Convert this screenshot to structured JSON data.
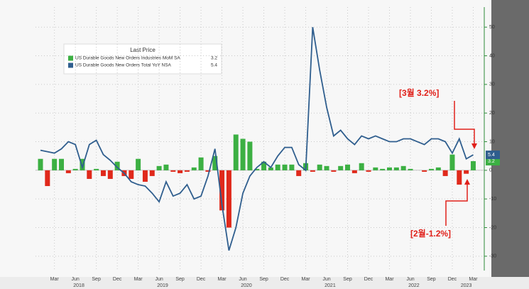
{
  "chart_data": {
    "type": "bar-line",
    "categories": [
      null,
      null,
      "Mar",
      null,
      null,
      "Jun",
      null,
      null,
      "Sep",
      null,
      null,
      "Dec",
      null,
      null,
      "Mar",
      null,
      null,
      "Jun",
      null,
      null,
      "Sep",
      null,
      null,
      "Dec",
      null,
      null,
      "Mar",
      null,
      null,
      "Jun",
      null,
      null,
      "Sep",
      null,
      null,
      "Dec",
      null,
      null,
      "Mar",
      null,
      null,
      "Jun",
      null,
      null,
      "Sep",
      null,
      null,
      "Dec",
      null,
      null,
      "Mar",
      null,
      null,
      "Jun",
      null,
      null,
      "Sep",
      null,
      null,
      "Dec",
      null,
      null,
      "Mar"
    ],
    "x_groups": [
      "2018",
      "2019",
      "2020",
      "2021",
      "2022",
      "2023"
    ],
    "legend_title": "Last Price",
    "series": [
      {
        "name": "US Durable Goods New Orders Industries MoM SA",
        "type": "bar",
        "color": "#3cb043",
        "negative_color": "#e0291b",
        "values": [
          4,
          -5.5,
          4,
          4,
          -1,
          0.5,
          4,
          -3,
          0.5,
          -2,
          -3,
          3,
          -2,
          -3,
          4,
          -4,
          -2,
          1.5,
          2,
          -0.5,
          -1,
          -0.5,
          1,
          4.5,
          -0.5,
          5,
          -14,
          -20,
          12.5,
          11,
          10,
          0.5,
          3,
          1,
          2,
          2,
          2,
          -2,
          2.5,
          -0.5,
          2,
          1.5,
          -0.5,
          1.5,
          2,
          -1,
          2.5,
          -0.5,
          1,
          0.5,
          1,
          1,
          1.5,
          0.5,
          0,
          -0.5,
          0.5,
          1,
          -2,
          5.5,
          -5,
          -1.2,
          3.2
        ]
      },
      {
        "name": "US Durable Goods New Orders Total YoY NSA",
        "type": "line",
        "color": "#2f5e8e",
        "values": [
          7,
          6.5,
          6,
          7.5,
          10,
          9,
          1,
          9,
          10.5,
          5.5,
          3.5,
          1,
          -1,
          -4,
          -5,
          -5.5,
          -8,
          -11,
          -4,
          -9,
          -8,
          -5,
          -10,
          -9,
          -2,
          7.5,
          -12,
          -28,
          -20,
          -8,
          -2,
          1,
          3,
          1,
          5,
          8,
          8,
          2,
          0,
          50,
          35,
          22,
          12,
          14,
          11,
          9,
          12,
          11,
          12,
          11,
          10,
          10,
          11,
          11,
          10,
          9,
          11,
          11,
          10,
          6,
          11,
          4,
          5.4
        ]
      }
    ],
    "ylim": [
      -35,
      57
    ],
    "yticks": [
      50,
      40,
      30,
      20,
      10,
      0,
      -10,
      -20,
      -30
    ],
    "grid": true,
    "annotations": [
      {
        "text": "[3월 3.2%]",
        "color": "#e0201a"
      },
      {
        "text": "[2월-1.2%]",
        "color": "#e0201a"
      }
    ]
  }
}
